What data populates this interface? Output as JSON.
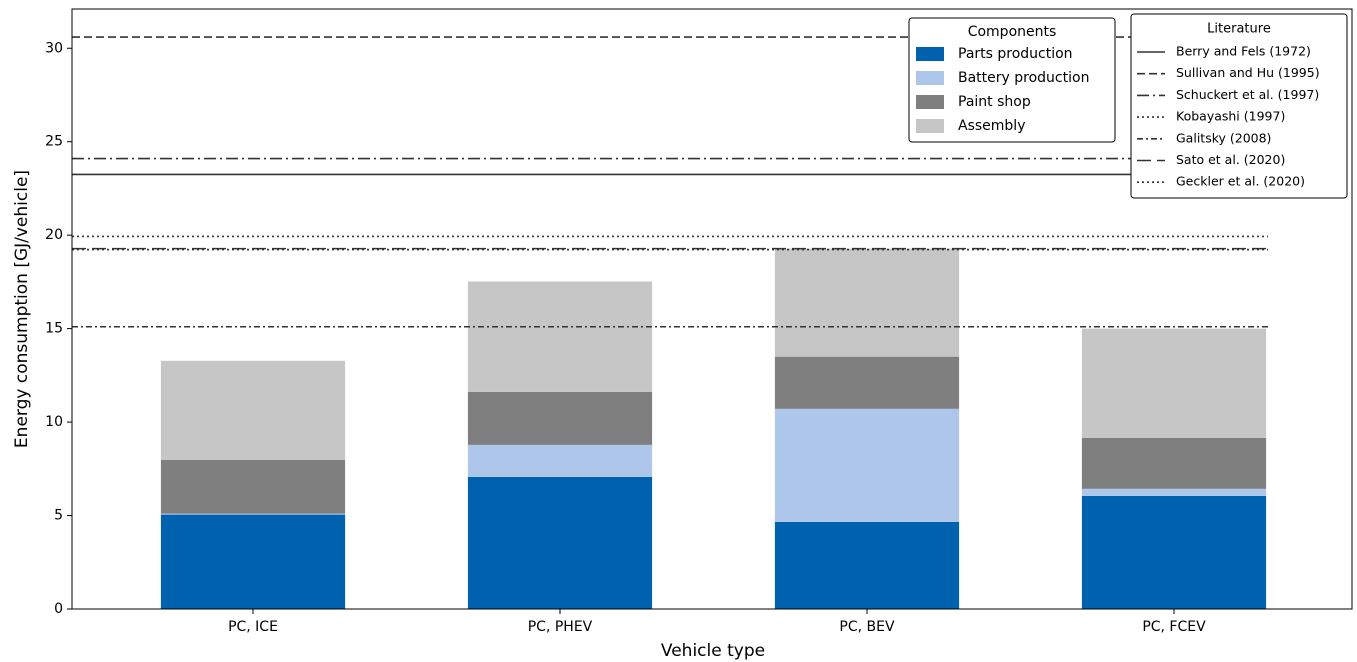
{
  "chart_data": {
    "type": "stacked-bar",
    "xlabel": "Vehicle type",
    "ylabel": "Energy consumption [GJ/vehicle]",
    "categories": [
      "PC, ICE",
      "PC, PHEV",
      "PC, BEV",
      "PC, FCEV"
    ],
    "series": [
      {
        "name": "Parts production",
        "color": "#0062ae",
        "values": [
          5.05,
          7.07,
          4.66,
          6.05
        ]
      },
      {
        "name": "Battery production",
        "color": "#aec6ea",
        "values": [
          0.05,
          1.71,
          6.05,
          0.38
        ]
      },
      {
        "name": "Paint shop",
        "color": "#7f7f7f",
        "values": [
          2.88,
          2.84,
          2.79,
          2.73
        ]
      },
      {
        "name": "Assembly",
        "color": "#c6c6c6",
        "values": [
          5.3,
          5.9,
          5.78,
          5.84
        ]
      }
    ],
    "legend_title": "Components",
    "reference_legend_title": "Literature",
    "reference_lines": [
      {
        "name": "Berry and Fels (1972)",
        "style": "solid",
        "value": 23.25
      },
      {
        "name": "Sullivan and Hu (1995)",
        "style": "dashed",
        "value": 30.6
      },
      {
        "name": "Schuckert et al. (1997)",
        "style": "long-dashdot",
        "value": 24.1
      },
      {
        "name": "Kobayashi (1997)",
        "style": "dotted",
        "value": 19.93
      },
      {
        "name": "Galitsky (2008)",
        "style": "dashdot",
        "value": 15.1
      },
      {
        "name": "Sato et al. (2020)",
        "style": "long-dashed",
        "value": 19.28
      },
      {
        "name": "Geckler et al. (2020)",
        "style": "dotted",
        "value": 19.23
      }
    ],
    "ylim": [
      0,
      32.1
    ],
    "yticks": [
      0,
      5,
      10,
      15,
      20,
      25,
      30
    ],
    "grid": false
  }
}
